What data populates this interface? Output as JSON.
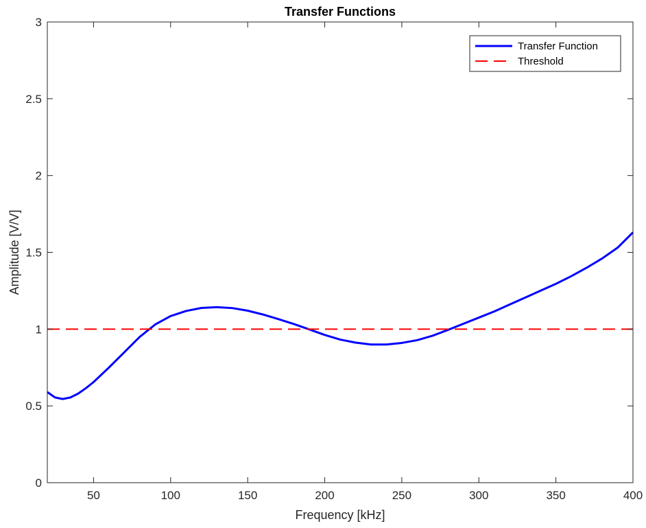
{
  "chart_data": {
    "type": "line",
    "title": "Transfer Functions",
    "xlabel": "Frequency [kHz]",
    "ylabel": "Amplitude [V/V]",
    "xlim": [
      20,
      400
    ],
    "ylim": [
      0,
      3
    ],
    "xticks": [
      50,
      100,
      150,
      200,
      250,
      300,
      350,
      400
    ],
    "xtick_labels": [
      "50",
      "100",
      "150",
      "200",
      "250",
      "300",
      "350",
      "400"
    ],
    "yticks": [
      0,
      0.5,
      1,
      1.5,
      2,
      2.5,
      3
    ],
    "ytick_labels": [
      "0",
      "0.5",
      "1",
      "1.5",
      "2",
      "2.5",
      "3"
    ],
    "grid": false,
    "legend_position": "top-right",
    "series": [
      {
        "name": "Transfer Function",
        "color": "#0000ff",
        "style": "solid",
        "x": [
          20,
          25,
          30,
          35,
          40,
          45,
          50,
          60,
          70,
          80,
          90,
          100,
          110,
          120,
          130,
          140,
          150,
          160,
          170,
          180,
          190,
          200,
          210,
          220,
          230,
          240,
          250,
          260,
          270,
          280,
          290,
          300,
          310,
          320,
          330,
          340,
          350,
          360,
          370,
          380,
          390,
          400
        ],
        "y": [
          0.59,
          0.555,
          0.545,
          0.555,
          0.58,
          0.615,
          0.655,
          0.75,
          0.85,
          0.95,
          1.03,
          1.085,
          1.118,
          1.138,
          1.143,
          1.137,
          1.12,
          1.095,
          1.065,
          1.033,
          0.998,
          0.962,
          0.932,
          0.912,
          0.9,
          0.9,
          0.91,
          0.928,
          0.957,
          0.995,
          1.035,
          1.075,
          1.115,
          1.16,
          1.205,
          1.25,
          1.295,
          1.345,
          1.4,
          1.46,
          1.53,
          1.63
        ]
      },
      {
        "name": "Threshold",
        "color": "#ff0000",
        "style": "dashed",
        "x": [
          20,
          400
        ],
        "y": [
          1,
          1
        ]
      }
    ]
  }
}
